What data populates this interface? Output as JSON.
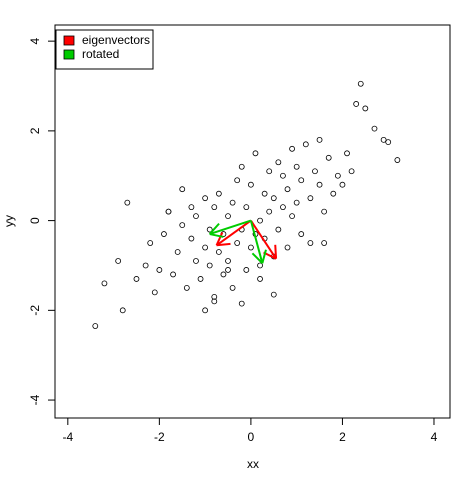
{
  "chart_data": {
    "type": "scatter",
    "xlabel": "xx",
    "ylabel": "yy",
    "xlim": [
      -4.28,
      4.35
    ],
    "ylim": [
      -4.4,
      4.36
    ],
    "xticks": [
      -4,
      -2,
      0,
      2,
      4
    ],
    "yticks": [
      -4,
      -2,
      0,
      2,
      4
    ],
    "point_color": "#000000",
    "x": [
      -3.4,
      -3.2,
      -2.8,
      -2.9,
      -2.7,
      -2.5,
      -2.3,
      -2.2,
      -2.1,
      -2.0,
      -1.9,
      -1.8,
      -1.7,
      -1.6,
      -1.5,
      -1.5,
      -1.4,
      -1.3,
      -1.3,
      -1.2,
      -1.2,
      -1.1,
      -1.0,
      -1.0,
      -0.9,
      -0.9,
      -0.8,
      -0.8,
      -0.7,
      -0.7,
      -0.6,
      -0.6,
      -0.5,
      -0.5,
      -0.4,
      -0.4,
      -0.3,
      -0.3,
      -0.2,
      -0.2,
      -0.1,
      -0.1,
      0,
      0,
      0.1,
      0.1,
      0.2,
      0.2,
      0.3,
      0.3,
      0.4,
      0.4,
      0.5,
      0.5,
      0.6,
      0.6,
      0.7,
      0.7,
      0.8,
      0.8,
      0.9,
      0.9,
      1.0,
      1.0,
      1.1,
      1.1,
      1.2,
      1.3,
      1.3,
      1.4,
      1.5,
      1.5,
      1.6,
      1.7,
      1.8,
      1.9,
      2.0,
      2.1,
      2.2,
      2.3,
      2.4,
      2.5,
      2.7,
      2.9,
      3.0,
      3.2,
      -1.0,
      -0.2,
      0.5,
      -0.8,
      -1.8,
      1.6,
      0.2,
      -0.5
    ],
    "y": [
      -2.35,
      -1.4,
      -2.0,
      -0.9,
      0.4,
      -1.3,
      -1.0,
      -0.5,
      -1.6,
      -1.1,
      -0.3,
      0.2,
      -1.2,
      -0.7,
      0.7,
      -0.1,
      -1.5,
      -0.4,
      0.3,
      -0.9,
      0.1,
      -1.3,
      -0.6,
      0.5,
      -1.0,
      -0.2,
      -1.8,
      0.3,
      -0.7,
      0.6,
      -1.2,
      -0.3,
      0.1,
      -0.9,
      -1.5,
      0.4,
      -0.5,
      0.9,
      -0.2,
      1.2,
      -1.1,
      0.3,
      -0.6,
      0.8,
      -0.3,
      1.5,
      0.0,
      -1.0,
      0.6,
      -0.4,
      1.1,
      0.2,
      -0.8,
      0.5,
      1.3,
      -0.2,
      0.3,
      1.0,
      -0.6,
      0.7,
      1.6,
      0.1,
      0.4,
      1.2,
      -0.3,
      0.9,
      1.7,
      0.5,
      -0.5,
      1.1,
      0.8,
      1.8,
      0.2,
      1.4,
      0.6,
      1.0,
      0.8,
      1.5,
      1.1,
      2.6,
      3.05,
      2.5,
      2.05,
      1.8,
      1.75,
      1.35,
      -2.0,
      -1.85,
      -1.65,
      -1.7,
      0.2,
      -0.5,
      -1.3,
      -1.1
    ],
    "arrows": [
      {
        "name": "eigenvectors",
        "color": "#ff0000",
        "x0": [
          0,
          0
        ],
        "y0": [
          0,
          0
        ],
        "x1": [
          -0.75,
          0.55
        ],
        "y1": [
          -0.55,
          -0.85
        ]
      },
      {
        "name": "rotated",
        "color": "#00cc00",
        "x0": [
          0,
          0
        ],
        "y0": [
          0,
          0
        ],
        "x1": [
          -0.9,
          0.25
        ],
        "y1": [
          -0.3,
          -0.95
        ]
      }
    ]
  }
}
